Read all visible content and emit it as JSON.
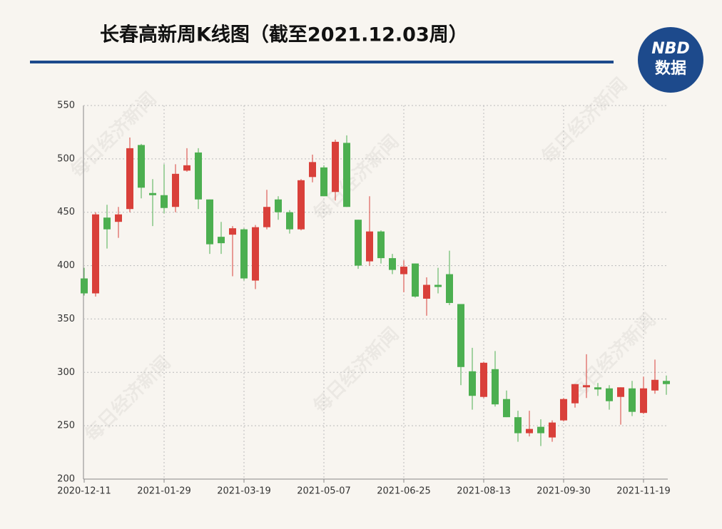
{
  "chart_data": {
    "type": "candlestick",
    "title": "长春高新周K线图（截至2021.12.03周）",
    "logo": {
      "top": "NBD",
      "bottom": "数据"
    },
    "watermark": "每日经济新闻",
    "categories": [
      "2020-12-11",
      null,
      null,
      null,
      null,
      null,
      null,
      "2021-01-29",
      null,
      null,
      null,
      null,
      null,
      null,
      "2021-03-19",
      null,
      null,
      null,
      null,
      null,
      null,
      "2021-05-07",
      null,
      null,
      null,
      null,
      null,
      null,
      "2021-06-25",
      null,
      null,
      null,
      null,
      null,
      null,
      "2021-08-13",
      null,
      null,
      null,
      null,
      null,
      null,
      "2021-09-30",
      null,
      null,
      null,
      null,
      null,
      null,
      "2021-11-19",
      null,
      null
    ],
    "open": [
      388,
      374,
      445,
      441,
      453,
      513,
      468,
      466,
      455,
      489,
      506,
      462,
      427,
      429,
      434,
      386,
      436,
      462,
      450,
      434,
      483,
      492,
      469,
      515,
      443,
      404,
      432,
      407,
      392,
      402,
      369,
      382,
      392,
      364,
      301,
      277,
      303,
      275,
      258,
      243,
      249,
      239,
      255,
      271,
      286,
      286,
      285,
      277,
      285,
      262,
      283,
      292
    ],
    "high": [
      398,
      450,
      457,
      455,
      520,
      514,
      481,
      495,
      495,
      510,
      510,
      462,
      441,
      437,
      435,
      438,
      471,
      465,
      452,
      481,
      504,
      494,
      518,
      522,
      443,
      465,
      433,
      411,
      405,
      402,
      389,
      398,
      414,
      364,
      323,
      310,
      320,
      283,
      264,
      264,
      256,
      255,
      276,
      289,
      317,
      290,
      288,
      286,
      292,
      296,
      312,
      297
    ],
    "low": [
      372,
      371,
      416,
      426,
      450,
      463,
      437,
      449,
      450,
      488,
      453,
      411,
      411,
      390,
      386,
      378,
      434,
      443,
      430,
      433,
      478,
      465,
      461,
      455,
      397,
      400,
      402,
      392,
      375,
      370,
      353,
      374,
      363,
      288,
      265,
      276,
      268,
      258,
      235,
      240,
      231,
      235,
      254,
      267,
      276,
      278,
      265,
      251,
      259,
      261,
      280,
      279
    ],
    "close": [
      374,
      448,
      434,
      448,
      510,
      473,
      466,
      454,
      486,
      494,
      462,
      420,
      421,
      435,
      388,
      436,
      455,
      450,
      434,
      480,
      497,
      465,
      516,
      455,
      400,
      432,
      407,
      396,
      399,
      371,
      382,
      380,
      365,
      305,
      278,
      309,
      270,
      258,
      243,
      247,
      243,
      253,
      275,
      289,
      288,
      284,
      273,
      286,
      263,
      285,
      293,
      289
    ],
    "up_color": "#d9403a",
    "down_color": "#4caf50",
    "ylim": [
      200,
      550
    ],
    "yticks": [
      200,
      250,
      300,
      350,
      400,
      450,
      500,
      550
    ],
    "grid": true
  }
}
